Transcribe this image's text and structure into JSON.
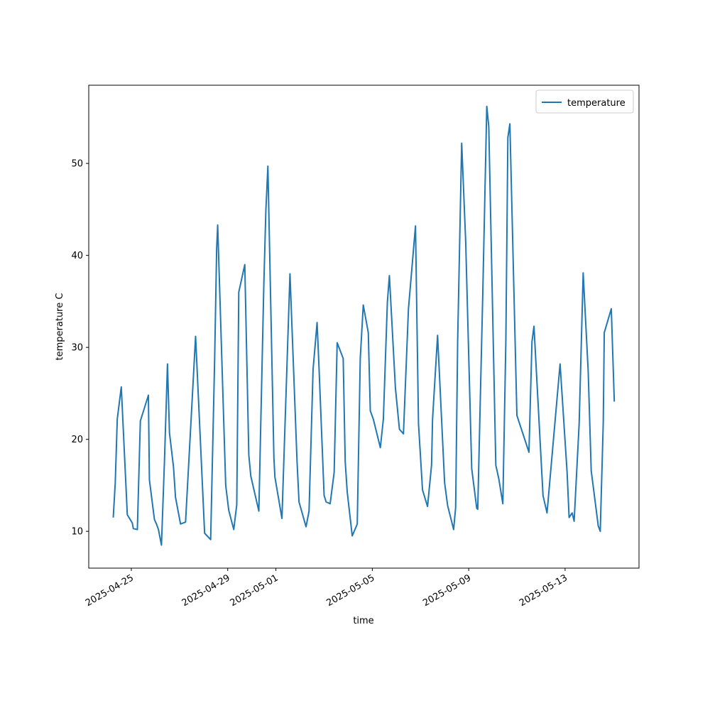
{
  "chart_data": {
    "type": "line",
    "xlabel": "time",
    "ylabel": "temperature C",
    "legend": "upper right",
    "xlim": [
      "2025-04-23T05:36",
      "2025-05-16T01:36"
    ],
    "xticks": [
      "2025-04-25",
      "2025-04-29",
      "2025-05-01",
      "2025-05-05",
      "2025-05-09",
      "2025-05-13"
    ],
    "ylim": [
      6.0,
      58.5
    ],
    "yticks": [
      10,
      20,
      30,
      40,
      50
    ],
    "x": [
      "2025-04-24T06:00",
      "2025-04-24T08:00",
      "2025-04-24T10:00",
      "2025-04-24T14:00",
      "2025-04-24T20:00",
      "2025-04-25T01:00",
      "2025-04-25T02:00",
      "2025-04-25T06:00",
      "2025-04-25T09:00",
      "2025-04-25T17:00",
      "2025-04-25T18:00",
      "2025-04-25T23:00",
      "2025-04-26T01:00",
      "2025-04-26T03:00",
      "2025-04-26T06:00",
      "2025-04-26T09:00",
      "2025-04-26T12:00",
      "2025-04-26T14:00",
      "2025-04-26T18:00",
      "2025-04-26T20:00",
      "2025-04-27T01:00",
      "2025-04-27T06:00",
      "2025-04-27T16:00",
      "2025-04-28T01:00",
      "2025-04-28T07:00",
      "2025-04-28T11:00",
      "2025-04-28T13:00",
      "2025-04-28T14:00",
      "2025-04-28T22:00",
      "2025-04-29T01:00",
      "2025-04-29T06:00",
      "2025-04-29T09:00",
      "2025-04-29T11:00",
      "2025-04-29T17:00",
      "2025-04-29T21:00",
      "2025-04-29T23:00",
      "2025-04-30T07:00",
      "2025-04-30T12:00",
      "2025-04-30T14:00",
      "2025-04-30T16:00",
      "2025-04-30T22:00",
      "2025-04-30T23:00",
      "2025-05-01T06:00",
      "2025-05-01T14:00",
      "2025-05-01T21:00",
      "2025-05-01T23:00",
      "2025-05-02T06:00",
      "2025-05-02T09:00",
      "2025-05-02T13:00",
      "2025-05-02T17:00",
      "2025-05-02T19:00",
      "2025-05-03T00:00",
      "2025-05-03T02:00",
      "2025-05-03T06:00",
      "2025-05-03T10:00",
      "2025-05-03T13:00",
      "2025-05-03T19:00",
      "2025-05-03T21:00",
      "2025-05-03T23:00",
      "2025-05-04T04:00",
      "2025-05-04T09:00",
      "2025-05-04T12:00",
      "2025-05-04T15:00",
      "2025-05-04T20:00",
      "2025-05-04T22:00",
      "2025-05-05T01:00",
      "2025-05-05T08:00",
      "2025-05-05T11:00",
      "2025-05-05T15:00",
      "2025-05-05T17:00",
      "2025-05-05T23:00",
      "2025-05-06T03:00",
      "2025-05-06T07:00",
      "2025-05-06T12:00",
      "2025-05-06T19:00",
      "2025-05-06T22:00",
      "2025-05-07T02:00",
      "2025-05-07T07:00",
      "2025-05-07T11:00",
      "2025-05-07T12:00",
      "2025-05-07T17:00",
      "2025-05-08T00:00",
      "2025-05-08T03:00",
      "2025-05-08T09:00",
      "2025-05-08T11:00",
      "2025-05-08T13:00",
      "2025-05-08T17:00",
      "2025-05-08T21:00",
      "2025-05-09T03:00",
      "2025-05-09T08:00",
      "2025-05-09T09:00",
      "2025-05-09T14:00",
      "2025-05-09T18:00",
      "2025-05-09T20:00",
      "2025-05-10T03:00",
      "2025-05-10T06:00",
      "2025-05-10T10:00",
      "2025-05-10T13:00",
      "2025-05-10T15:00",
      "2025-05-10T17:00",
      "2025-05-11T00:00",
      "2025-05-11T12:00",
      "2025-05-11T15:00",
      "2025-05-11T17:00",
      "2025-05-12T02:00",
      "2025-05-12T06:00",
      "2025-05-12T19:00",
      "2025-05-13T02:00",
      "2025-05-13T04:00",
      "2025-05-13T07:00",
      "2025-05-13T09:00",
      "2025-05-13T14:00",
      "2025-05-13T18:00",
      "2025-05-13T23:00",
      "2025-05-14T02:00",
      "2025-05-14T09:00",
      "2025-05-14T11:00",
      "2025-05-14T14:00",
      "2025-05-14T15:00",
      "2025-05-14T22:00",
      "2025-05-15T01:00"
    ],
    "series": [
      {
        "name": "temperature",
        "color": "#1f77b4",
        "values": [
          11.5,
          15.3,
          22.2,
          25.7,
          11.8,
          10.9,
          10.3,
          10.2,
          22.0,
          24.8,
          15.6,
          11.3,
          10.8,
          10.2,
          8.5,
          17.6,
          28.2,
          20.7,
          17.0,
          13.7,
          10.8,
          11.0,
          31.2,
          9.8,
          9.1,
          28.8,
          40.8,
          43.3,
          15.0,
          12.3,
          10.2,
          12.9,
          36.0,
          39.0,
          18.3,
          16.0,
          12.2,
          37.0,
          44.9,
          49.7,
          18.0,
          15.9,
          11.4,
          38.0,
          17.7,
          13.2,
          10.5,
          12.2,
          27.6,
          32.7,
          27.6,
          13.9,
          13.2,
          13.0,
          16.4,
          30.5,
          28.8,
          17.6,
          14.3,
          9.5,
          10.8,
          28.8,
          34.6,
          31.6,
          23.1,
          22.2,
          19.1,
          22.2,
          34.9,
          37.8,
          25.6,
          21.1,
          20.6,
          34.2,
          43.2,
          21.7,
          14.5,
          12.7,
          17.2,
          22.2,
          31.3,
          15.3,
          12.8,
          10.2,
          12.6,
          30.7,
          52.2,
          41.5,
          16.8,
          12.5,
          12.4,
          35.8,
          56.2,
          54.0,
          17.2,
          15.7,
          13.0,
          30.7,
          52.8,
          54.3,
          22.6,
          18.6,
          30.6,
          32.3,
          13.9,
          12.0,
          28.2,
          16.4,
          11.5,
          12.0,
          11.1,
          21.7,
          38.1,
          27.4,
          16.6,
          10.6,
          10.0,
          21.8,
          31.6,
          34.2,
          24.1
        ]
      }
    ]
  }
}
